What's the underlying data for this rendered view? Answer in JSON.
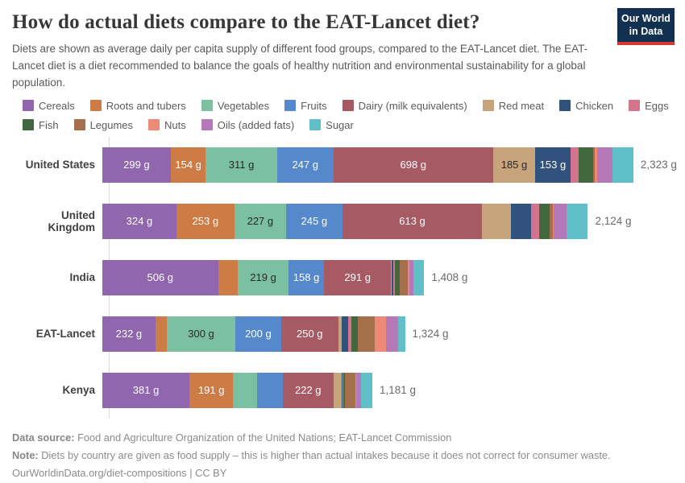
{
  "header": {
    "title": "How do actual diets compare to the EAT-Lancet diet?",
    "subtitle": "Diets are shown as average daily per capita supply of different food groups, compared to the EAT-Lancet diet. The EAT-Lancet diet is a diet recommended to balance the goals of healthy nutrition and environmental sustainability for a global population.",
    "logo": {
      "line1": "Our World",
      "line2": "in Data",
      "bg_color": "#12304f",
      "accent_color": "#d7372f"
    }
  },
  "legend": {
    "items": [
      {
        "label": "Cereals",
        "color": "#9066ae"
      },
      {
        "label": "Roots and tubers",
        "color": "#cd7c46"
      },
      {
        "label": "Vegetables",
        "color": "#7cc0a2"
      },
      {
        "label": "Fruits",
        "color": "#5589cc"
      },
      {
        "label": "Dairy (milk equivalents)",
        "color": "#a75a63"
      },
      {
        "label": "Red meat",
        "color": "#c7a47b"
      },
      {
        "label": "Chicken",
        "color": "#32527e"
      },
      {
        "label": "Eggs",
        "color": "#d4738c"
      },
      {
        "label": "Fish",
        "color": "#41683e"
      },
      {
        "label": "Legumes",
        "color": "#a56f4c"
      },
      {
        "label": "Nuts",
        "color": "#ec8977"
      },
      {
        "label": "Oils (added fats)",
        "color": "#b579ba"
      },
      {
        "label": "Sugar",
        "color": "#61bfca"
      }
    ]
  },
  "chart_data": {
    "type": "bar",
    "orientation": "horizontal",
    "stacked": true,
    "unit": "g",
    "axis_max_grams": 2323,
    "categories": [
      "Cereals",
      "Roots and tubers",
      "Vegetables",
      "Fruits",
      "Dairy (milk equivalents)",
      "Red meat",
      "Chicken",
      "Eggs",
      "Fish",
      "Legumes",
      "Nuts",
      "Oils (added fats)",
      "Sugar"
    ],
    "rows": [
      {
        "label": "United States",
        "total": 2323,
        "total_label": "2,323 g",
        "values": [
          299,
          154,
          311,
          247,
          698,
          185,
          153,
          35,
          65,
          8,
          11,
          65,
          92
        ],
        "segment_labels": [
          "299 g",
          "154 g",
          "311 g",
          "247 g",
          "698 g",
          "185 g",
          "153 g",
          null,
          null,
          null,
          null,
          null,
          null
        ]
      },
      {
        "label": "United Kingdom",
        "total": 2124,
        "total_label": "2,124 g",
        "values": [
          324,
          253,
          227,
          245,
          613,
          124,
          88,
          35,
          49,
          11,
          7,
          53,
          95
        ],
        "segment_labels": [
          "324 g",
          "253 g",
          "227 g",
          "245 g",
          "613 g",
          null,
          null,
          null,
          null,
          null,
          null,
          null,
          null
        ]
      },
      {
        "label": "India",
        "total": 1408,
        "total_label": "1,408 g",
        "values": [
          506,
          88,
          219,
          158,
          291,
          4,
          8,
          7,
          19,
          36,
          7,
          17,
          48
        ],
        "segment_labels": [
          "506 g",
          null,
          "219 g",
          "158 g",
          "291 g",
          null,
          null,
          null,
          null,
          null,
          null,
          null,
          null
        ]
      },
      {
        "label": "EAT-Lancet",
        "total": 1324,
        "total_label": "1,324 g",
        "values": [
          232,
          50,
          300,
          200,
          250,
          14,
          29,
          13,
          28,
          75,
          50,
          52,
          31
        ],
        "segment_labels": [
          "232 g",
          null,
          "300 g",
          "200 g",
          "250 g",
          null,
          null,
          null,
          null,
          null,
          null,
          null,
          null
        ]
      },
      {
        "label": "Kenya",
        "total": 1181,
        "total_label": "1,181 g",
        "values": [
          381,
          191,
          105,
          112,
          222,
          35,
          3,
          4,
          9,
          45,
          2,
          24,
          48
        ],
        "segment_labels": [
          "381 g",
          "191 g",
          null,
          null,
          "222 g",
          null,
          null,
          null,
          null,
          null,
          null,
          null,
          null
        ]
      }
    ]
  },
  "footer": {
    "data_source_prefix": "Data source:",
    "data_source_text": " Food and Agriculture Organization of the United Nations; EAT-Lancet Commission",
    "note_prefix": "Note:",
    "note_text": " Diets by country are given as food supply – this is higher than actual intakes because it does not correct for consumer waste.",
    "url": "OurWorldinData.org/diet-compositions",
    "license": " | CC BY"
  }
}
